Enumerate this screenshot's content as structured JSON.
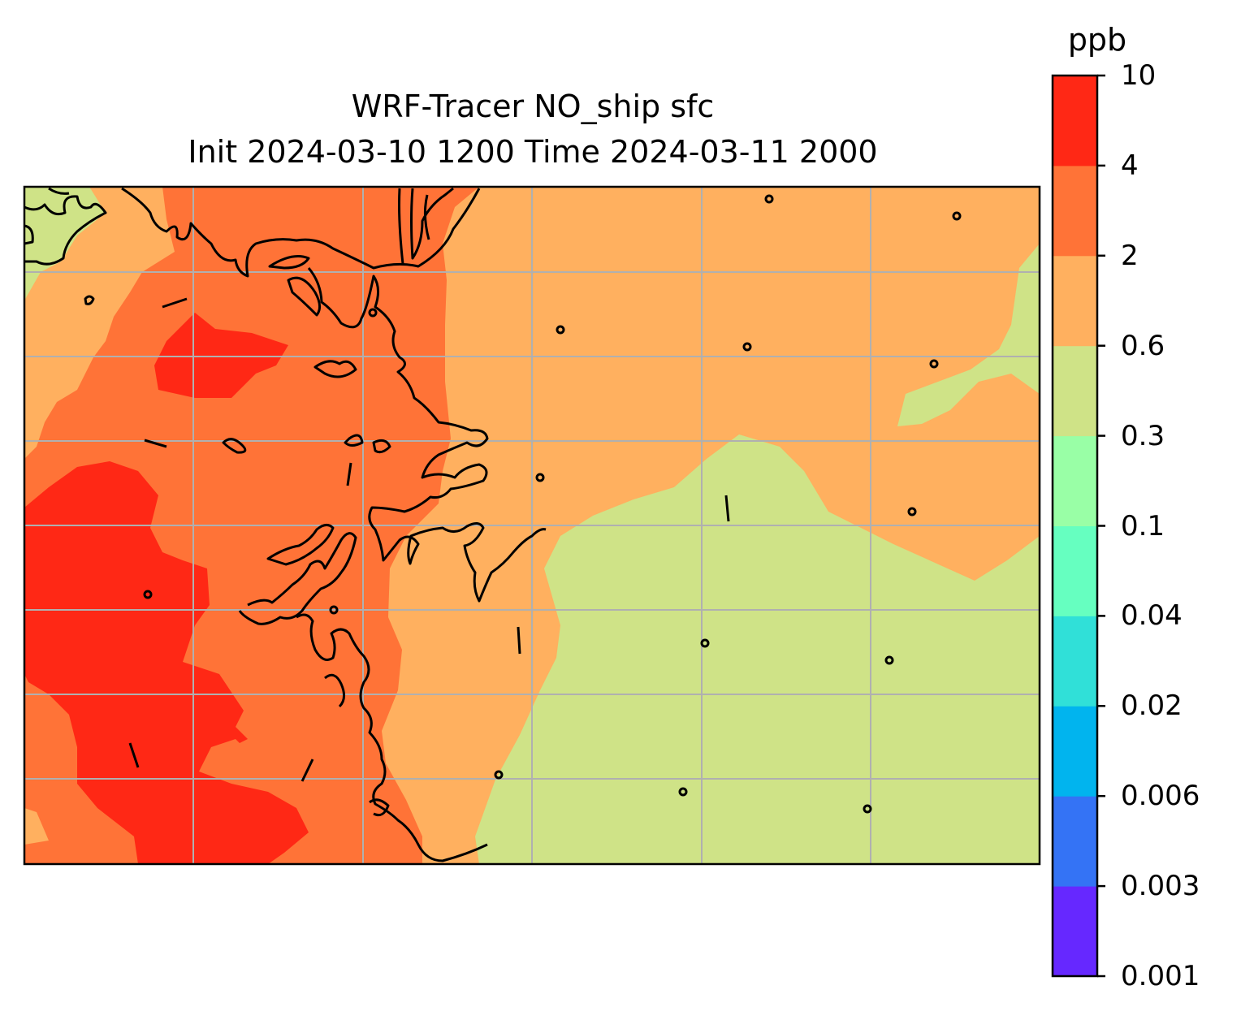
{
  "title": {
    "line1": "WRF-Tracer NO_ship sfc",
    "line2": "Init 2024-03-10 1200 Time 2024-03-11 2000"
  },
  "colorbar": {
    "unit": "ppb",
    "levels": [
      "0.001",
      "0.003",
      "0.006",
      "0.02",
      "0.04",
      "0.1",
      "0.3",
      "0.6",
      "2",
      "4",
      "10"
    ],
    "colors": [
      "#6628ff",
      "#3473f5",
      "#01b4ee",
      "#30e0d8",
      "#66ffc0",
      "#99ffa6",
      "#cfe387",
      "#ffb05f",
      "#ff7337",
      "#ff2815"
    ]
  },
  "map": {
    "field": "NO_ship",
    "level": "sfc",
    "fill_colors": {
      "0.3-0.6": "#cfe387",
      "0.6-2": "#ffb05f",
      "2-4": "#ff7337",
      "4-10": "#ff2815"
    },
    "coastline_color": "#000000",
    "gridline_color": "#b0b0b0"
  }
}
